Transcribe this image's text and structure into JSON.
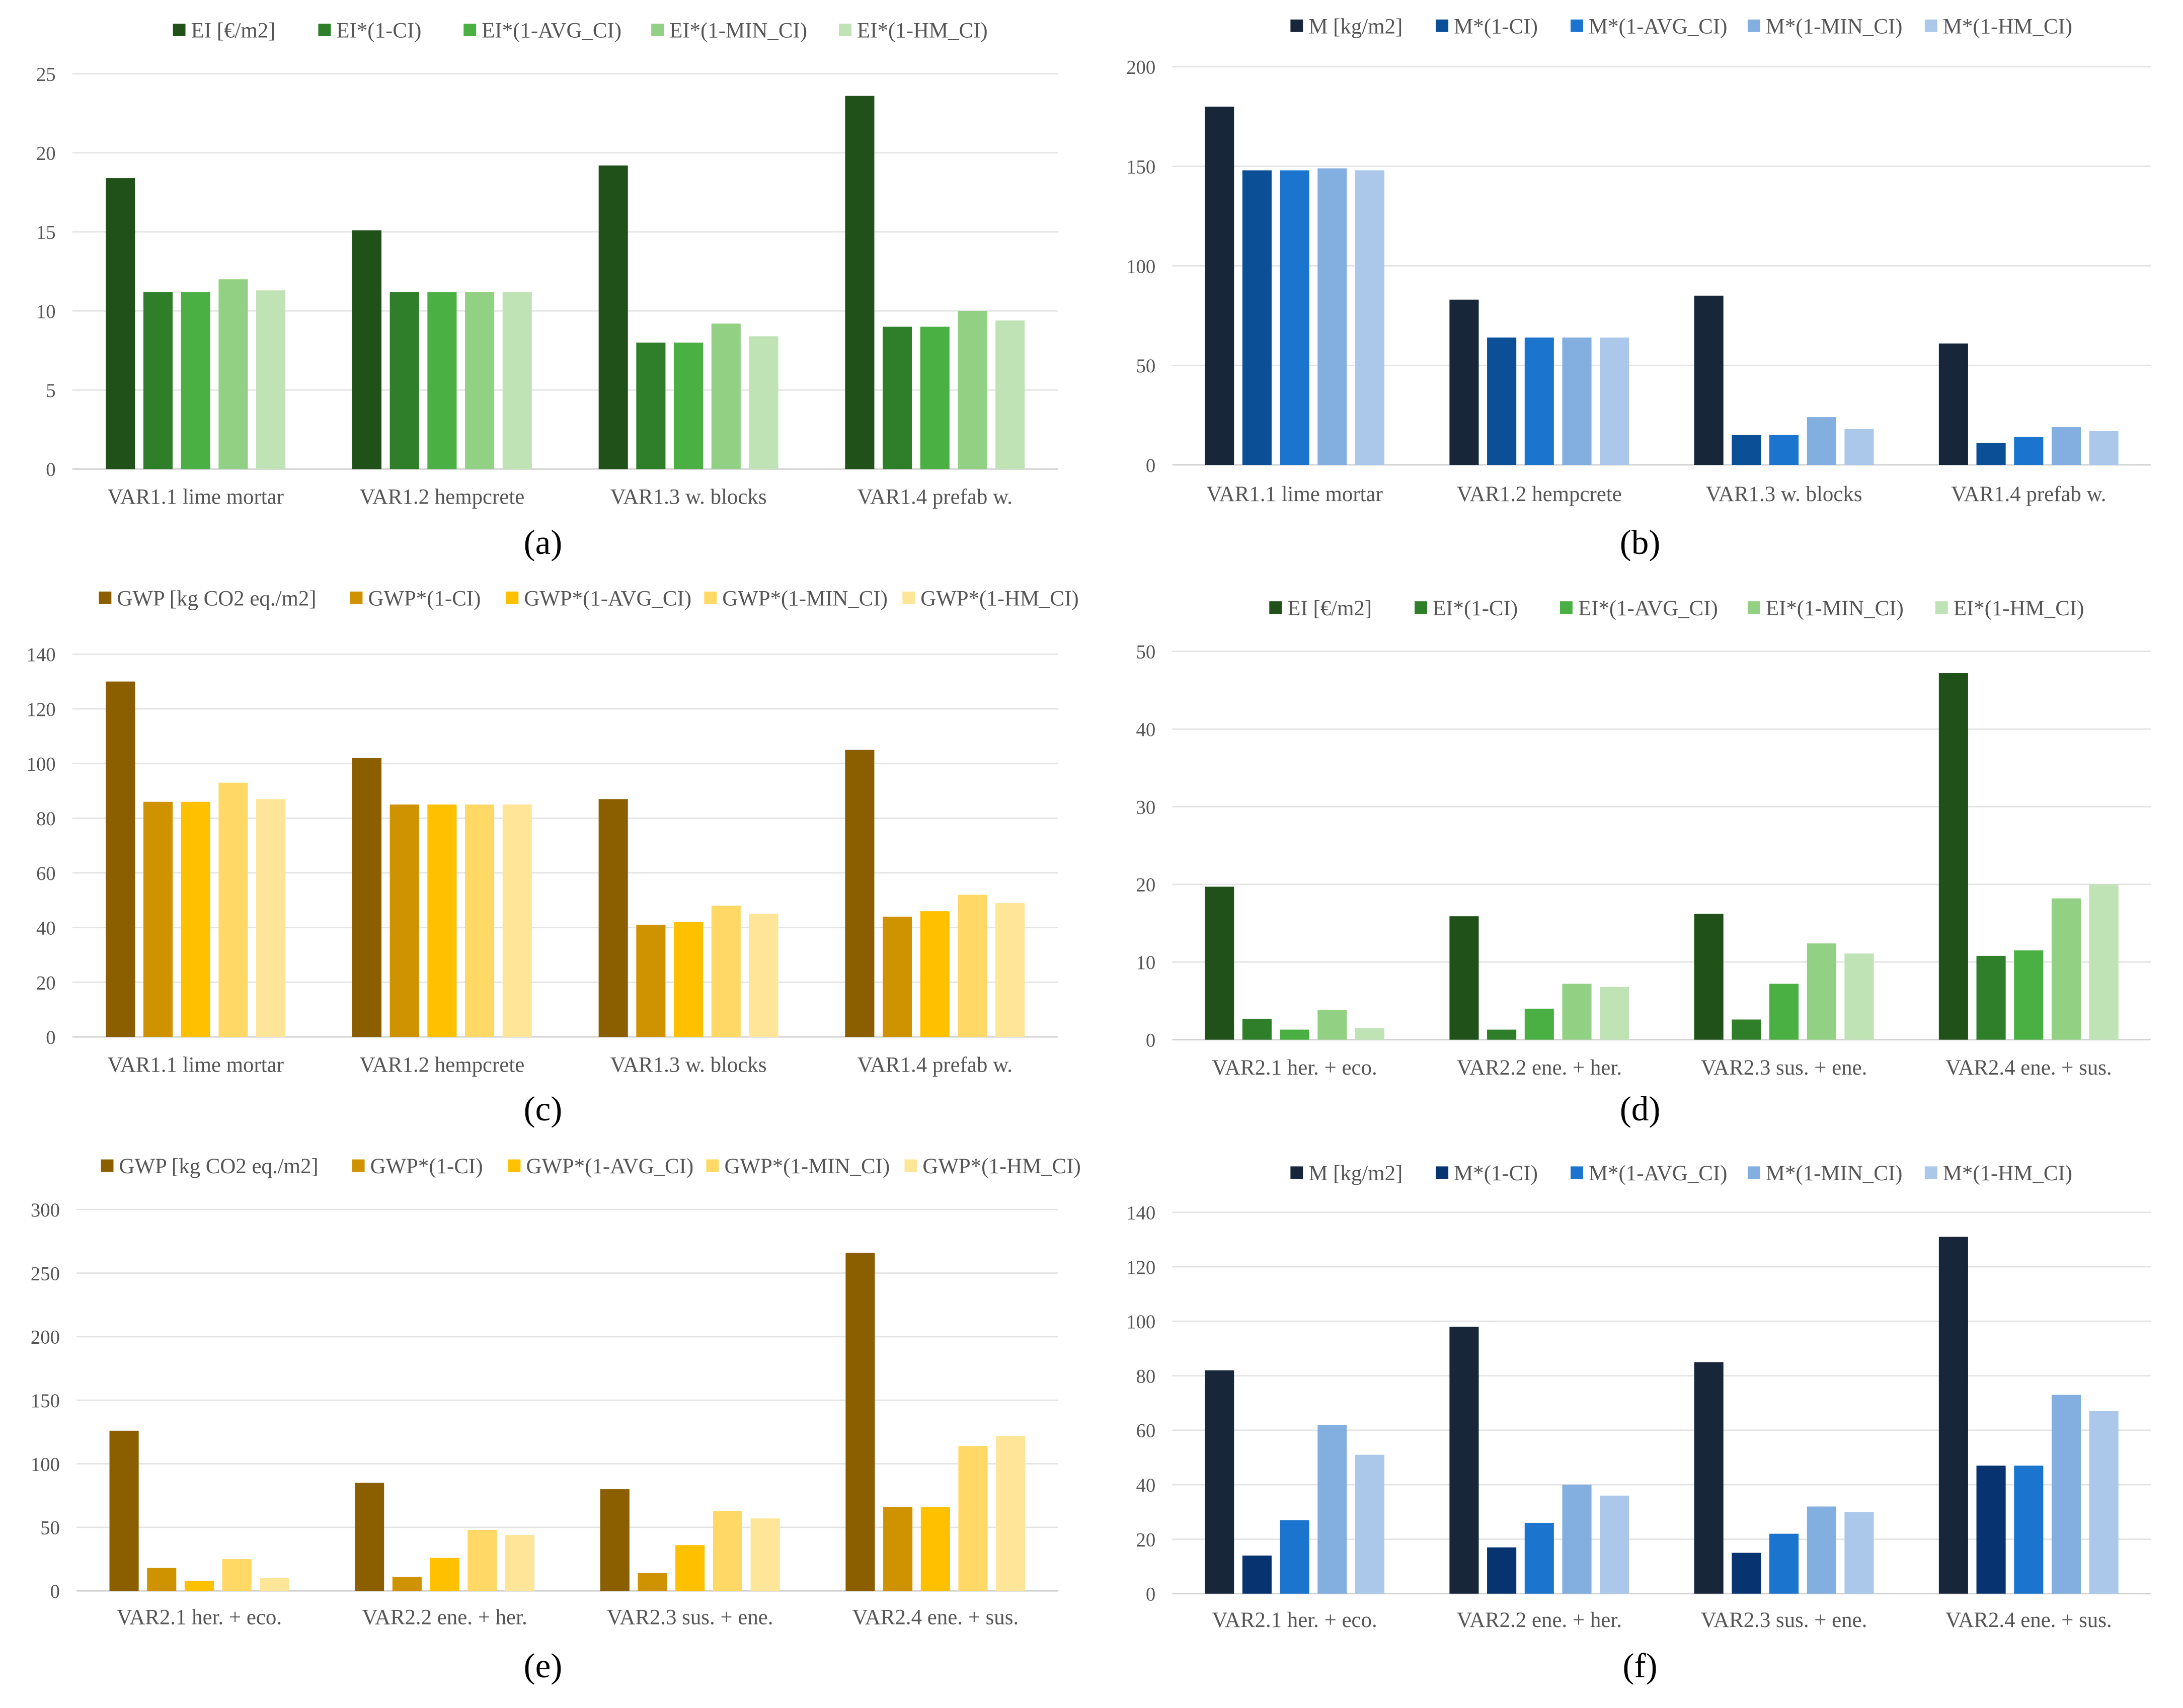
{
  "chart_data": [
    {
      "panel": "(a)",
      "type": "bar",
      "categories": [
        "VAR1.1 lime mortar",
        "VAR1.2 hempcrete",
        "VAR1.3 w. blocks",
        "VAR1.4 prefab w."
      ],
      "ylim": [
        0,
        25
      ],
      "ticks": [
        0,
        5,
        10,
        15,
        20,
        25
      ],
      "grid": true,
      "legend": "top",
      "series": [
        {
          "name": "EI [€/m2]",
          "color": "#1f5119",
          "values": [
            18.4,
            15.1,
            19.2,
            23.6
          ]
        },
        {
          "name": "EI*(1-CI)",
          "color": "#2f7f2a",
          "values": [
            11.2,
            11.2,
            8.0,
            9.0
          ]
        },
        {
          "name": "EI*(1-AVG_CI)",
          "color": "#4bb043",
          "values": [
            11.2,
            11.2,
            8.0,
            9.0
          ]
        },
        {
          "name": "EI*(1-MIN_CI)",
          "color": "#92d183",
          "values": [
            12.0,
            11.2,
            9.2,
            10.0
          ]
        },
        {
          "name": "EI*(1-HM_CI)",
          "color": "#bfe3b4",
          "values": [
            11.3,
            11.2,
            8.4,
            9.4
          ]
        }
      ]
    },
    {
      "panel": "(b)",
      "type": "bar",
      "categories": [
        "VAR1.1 lime mortar",
        "VAR1.2 hempcrete",
        "VAR1.3 w. blocks",
        "VAR1.4 prefab w."
      ],
      "ylim": [
        0,
        200
      ],
      "ticks": [
        0,
        50,
        100,
        150,
        200
      ],
      "grid": true,
      "legend": "top",
      "series": [
        {
          "name": "M [kg/m2]",
          "color": "#18263a",
          "values": [
            180,
            83,
            85,
            61
          ]
        },
        {
          "name": "M*(1-CI)",
          "color": "#0b4f96",
          "values": [
            148,
            64,
            15,
            11
          ]
        },
        {
          "name": "M*(1-AVG_CI)",
          "color": "#1b75cf",
          "values": [
            148,
            64,
            15,
            14
          ]
        },
        {
          "name": "M*(1-MIN_CI)",
          "color": "#82aee0",
          "values": [
            149,
            64,
            24,
            19
          ]
        },
        {
          "name": "M*(1-HM_CI)",
          "color": "#abc8ea",
          "values": [
            148,
            64,
            18,
            17
          ]
        }
      ]
    },
    {
      "panel": "(c)",
      "type": "bar",
      "categories": [
        "VAR1.1 lime mortar",
        "VAR1.2 hempcrete",
        "VAR1.3 w. blocks",
        "VAR1.4 prefab w."
      ],
      "ylim": [
        0,
        140
      ],
      "ticks": [
        0,
        20,
        40,
        60,
        80,
        100,
        120,
        140
      ],
      "grid": true,
      "legend": "top",
      "series": [
        {
          "name": "GWP [kg CO2 eq./m2]",
          "color": "#8b5e00",
          "values": [
            130,
            102,
            87,
            105
          ]
        },
        {
          "name": "GWP*(1-CI)",
          "color": "#cf9200",
          "values": [
            86,
            85,
            41,
            44
          ]
        },
        {
          "name": "GWP*(1-AVG_CI)",
          "color": "#ffc000",
          "values": [
            86,
            85,
            42,
            46
          ]
        },
        {
          "name": "GWP*(1-MIN_CI)",
          "color": "#ffd865",
          "values": [
            93,
            85,
            48,
            52
          ]
        },
        {
          "name": "GWP*(1-HM_CI)",
          "color": "#ffe598",
          "values": [
            87,
            85,
            45,
            49
          ]
        }
      ]
    },
    {
      "panel": "(d)",
      "type": "bar",
      "categories": [
        "VAR2.1 her. + eco.",
        "VAR2.2 ene. + her.",
        "VAR2.3 sus. + ene.",
        "VAR2.4 ene. + sus."
      ],
      "ylim": [
        0,
        50
      ],
      "ticks": [
        0,
        10,
        20,
        30,
        40,
        50
      ],
      "grid": true,
      "legend": "top",
      "series": [
        {
          "name": "EI [€/m2]",
          "color": "#1f5119",
          "values": [
            19.7,
            15.9,
            16.2,
            47.2
          ]
        },
        {
          "name": "EI*(1-CI)",
          "color": "#2f7f2a",
          "values": [
            2.7,
            1.3,
            2.6,
            10.8
          ]
        },
        {
          "name": "EI*(1-AVG_CI)",
          "color": "#4bb043",
          "values": [
            1.3,
            4.0,
            7.2,
            11.5
          ]
        },
        {
          "name": "EI*(1-MIN_CI)",
          "color": "#92d183",
          "values": [
            3.8,
            7.2,
            12.4,
            18.2
          ]
        },
        {
          "name": "EI*(1-HM_CI)",
          "color": "#bfe3b4",
          "values": [
            1.5,
            6.8,
            11.1,
            20.0
          ]
        }
      ]
    },
    {
      "panel": "(e)",
      "type": "bar",
      "categories": [
        "VAR2.1 her. + eco.",
        "VAR2.2 ene. + her.",
        "VAR2.3 sus. + ene.",
        "VAR2.4 ene. + sus."
      ],
      "ylim": [
        0,
        300
      ],
      "ticks": [
        0,
        50,
        100,
        150,
        200,
        250,
        300
      ],
      "grid": true,
      "legend": "top",
      "series": [
        {
          "name": "GWP [kg CO2 eq./m2]",
          "color": "#8b5e00",
          "values": [
            126,
            85,
            80,
            266
          ]
        },
        {
          "name": "GWP*(1-CI)",
          "color": "#cf9200",
          "values": [
            18,
            11,
            14,
            66
          ]
        },
        {
          "name": "GWP*(1-AVG_CI)",
          "color": "#ffc000",
          "values": [
            8,
            26,
            36,
            66
          ]
        },
        {
          "name": "GWP*(1-MIN_CI)",
          "color": "#ffd865",
          "values": [
            25,
            48,
            63,
            114
          ]
        },
        {
          "name": "GWP*(1-HM_CI)",
          "color": "#ffe598",
          "values": [
            10,
            44,
            57,
            122
          ]
        }
      ]
    },
    {
      "panel": "(f)",
      "type": "bar",
      "categories": [
        "VAR2.1 her. + eco.",
        "VAR2.2 ene. + her.",
        "VAR2.3 sus. + ene.",
        "VAR2.4 ene. + sus."
      ],
      "ylim": [
        0,
        140
      ],
      "ticks": [
        0,
        20,
        40,
        60,
        80,
        100,
        120,
        140
      ],
      "grid": true,
      "legend": "top",
      "series": [
        {
          "name": "M [kg/m2]",
          "color": "#18263a",
          "values": [
            82,
            98,
            85,
            131
          ]
        },
        {
          "name": "M*(1-CI)",
          "color": "#073470",
          "values": [
            14,
            17,
            15,
            47
          ]
        },
        {
          "name": "M*(1-AVG_CI)",
          "color": "#1b75cf",
          "values": [
            27,
            26,
            22,
            47
          ]
        },
        {
          "name": "M*(1-MIN_CI)",
          "color": "#82aee0",
          "values": [
            62,
            40,
            32,
            73
          ]
        },
        {
          "name": "M*(1-HM_CI)",
          "color": "#abc8ea",
          "values": [
            51,
            36,
            30,
            67
          ]
        }
      ]
    }
  ]
}
